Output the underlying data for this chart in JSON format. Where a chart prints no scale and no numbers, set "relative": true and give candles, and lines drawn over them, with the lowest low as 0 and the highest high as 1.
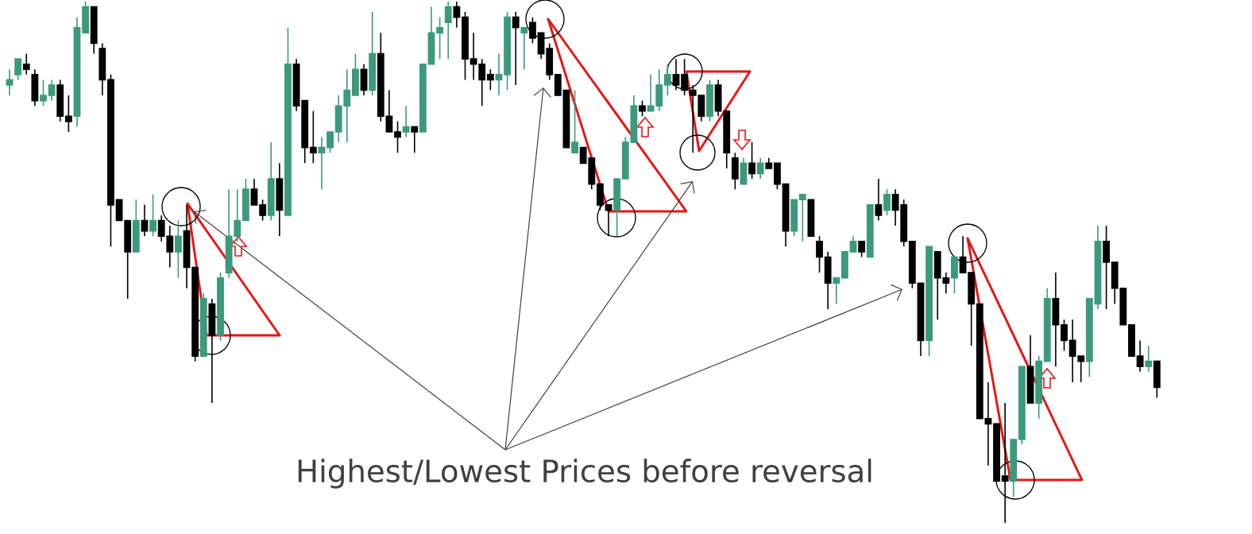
{
  "chart_data": {
    "type": "candlestick",
    "relative": true,
    "annotations": [
      "Highest/Lowest Prices before reversal"
    ],
    "categories": [
      null,
      null,
      null,
      null,
      null,
      null,
      null,
      null,
      null,
      null,
      null,
      null,
      null,
      null,
      null,
      null,
      null,
      null,
      null,
      null,
      null,
      null,
      null,
      null,
      null,
      null,
      null,
      null,
      null,
      null,
      null,
      null,
      null,
      null,
      null,
      null,
      null,
      null,
      null,
      null,
      null,
      null,
      null,
      null,
      null,
      null,
      null,
      null,
      null,
      null,
      null,
      null,
      null,
      null,
      null,
      null,
      null,
      null,
      null,
      null,
      null,
      null,
      null,
      null,
      null,
      null,
      null,
      null,
      null,
      null,
      null,
      null,
      null,
      null,
      null,
      null,
      null,
      null,
      null,
      null,
      null,
      null,
      null,
      null,
      null,
      null,
      null,
      null,
      null,
      null,
      null,
      null,
      null,
      null,
      null,
      null,
      null,
      null,
      null,
      null,
      null,
      null,
      null,
      null,
      null,
      null,
      null,
      null,
      null,
      null,
      null,
      null,
      null,
      null,
      null,
      null,
      null,
      null,
      null,
      null,
      null,
      null,
      null,
      null,
      null,
      null,
      null,
      null,
      null,
      null,
      null,
      null,
      null,
      null,
      null,
      null,
      null
    ],
    "ohlc": [
      [
        0.84,
        0.87,
        0.82,
        0.85
      ],
      [
        0.86,
        0.89,
        0.85,
        0.89
      ],
      [
        0.88,
        0.9,
        0.86,
        0.87
      ],
      [
        0.86,
        0.87,
        0.8,
        0.81
      ],
      [
        0.81,
        0.85,
        0.8,
        0.82
      ],
      [
        0.82,
        0.85,
        0.81,
        0.84
      ],
      [
        0.84,
        0.85,
        0.77,
        0.78
      ],
      [
        0.78,
        0.82,
        0.75,
        0.77
      ],
      [
        0.78,
        0.97,
        0.76,
        0.95
      ],
      [
        0.94,
        1.0,
        0.94,
        0.99
      ],
      [
        0.99,
        0.99,
        0.9,
        0.92
      ],
      [
        0.91,
        0.92,
        0.82,
        0.85
      ],
      [
        0.85,
        0.86,
        0.53,
        0.61
      ],
      [
        0.62,
        0.62,
        0.58,
        0.58
      ],
      [
        0.58,
        0.58,
        0.43,
        0.52
      ],
      [
        0.52,
        0.62,
        0.52,
        0.58
      ],
      [
        0.58,
        0.61,
        0.55,
        0.56
      ],
      [
        0.56,
        0.63,
        0.55,
        0.58
      ],
      [
        0.58,
        0.59,
        0.54,
        0.55
      ],
      [
        0.55,
        0.57,
        0.49,
        0.52
      ],
      [
        0.52,
        0.58,
        0.47,
        0.55
      ],
      [
        0.56,
        0.61,
        0.45,
        0.49
      ],
      [
        0.49,
        0.49,
        0.31,
        0.32
      ],
      [
        0.32,
        0.44,
        0.32,
        0.43
      ],
      [
        0.42,
        0.43,
        0.23,
        0.36
      ],
      [
        0.36,
        0.48,
        0.35,
        0.47
      ],
      [
        0.48,
        0.64,
        0.47,
        0.55
      ],
      [
        0.55,
        0.64,
        0.54,
        0.58
      ],
      [
        0.58,
        0.66,
        0.58,
        0.64
      ],
      [
        0.64,
        0.66,
        0.61,
        0.61
      ],
      [
        0.61,
        0.62,
        0.58,
        0.59
      ],
      [
        0.59,
        0.73,
        0.58,
        0.66
      ],
      [
        0.66,
        0.69,
        0.55,
        0.6
      ],
      [
        0.59,
        0.95,
        0.59,
        0.88
      ],
      [
        0.88,
        0.89,
        0.79,
        0.8
      ],
      [
        0.81,
        0.81,
        0.69,
        0.72
      ],
      [
        0.72,
        0.79,
        0.69,
        0.71
      ],
      [
        0.71,
        0.74,
        0.64,
        0.72
      ],
      [
        0.72,
        0.75,
        0.71,
        0.75
      ],
      [
        0.75,
        0.82,
        0.73,
        0.8
      ],
      [
        0.8,
        0.87,
        0.73,
        0.83
      ],
      [
        0.82,
        0.9,
        0.82,
        0.87
      ],
      [
        0.87,
        0.88,
        0.82,
        0.83
      ],
      [
        0.83,
        0.98,
        0.82,
        0.9
      ],
      [
        0.9,
        0.94,
        0.77,
        0.78
      ],
      [
        0.78,
        0.83,
        0.75,
        0.75
      ],
      [
        0.75,
        0.77,
        0.71,
        0.74
      ],
      [
        0.75,
        0.8,
        0.74,
        0.76
      ],
      [
        0.76,
        0.76,
        0.71,
        0.75
      ],
      [
        0.75,
        0.88,
        0.75,
        0.88
      ],
      [
        0.88,
        0.99,
        0.88,
        0.94
      ],
      [
        0.94,
        0.97,
        0.89,
        0.95
      ],
      [
        0.96,
        1.0,
        0.89,
        0.99
      ],
      [
        0.99,
        1.0,
        0.95,
        0.97
      ],
      [
        0.97,
        0.98,
        0.85,
        0.89
      ],
      [
        0.89,
        0.94,
        0.85,
        0.88
      ],
      [
        0.88,
        0.89,
        0.8,
        0.85
      ],
      [
        0.86,
        0.87,
        0.83,
        0.85
      ],
      [
        0.85,
        0.9,
        0.82,
        0.86
      ],
      [
        0.86,
        0.98,
        0.83,
        0.97
      ],
      [
        0.97,
        0.98,
        0.84,
        0.95
      ],
      [
        0.94,
        0.95,
        0.87,
        0.95
      ],
      [
        0.96,
        0.97,
        0.92,
        0.93
      ],
      [
        0.94,
        0.94,
        0.89,
        0.9
      ],
      [
        0.91,
        0.92,
        0.85,
        0.86
      ],
      [
        0.86,
        0.86,
        0.82,
        0.82
      ],
      [
        0.83,
        0.83,
        0.72,
        0.72
      ],
      [
        0.71,
        0.83,
        0.71,
        0.73
      ],
      [
        0.72,
        0.72,
        0.69,
        0.69
      ],
      [
        0.7,
        0.7,
        0.64,
        0.65
      ],
      [
        0.65,
        0.65,
        0.6,
        0.61
      ],
      [
        0.61,
        0.61,
        0.55,
        0.6
      ],
      [
        0.6,
        0.66,
        0.55,
        0.66
      ],
      [
        0.66,
        0.74,
        0.66,
        0.73
      ],
      [
        0.73,
        0.82,
        0.73,
        0.8
      ],
      [
        0.8,
        0.81,
        0.78,
        0.79
      ],
      [
        0.79,
        0.86,
        0.79,
        0.8
      ],
      [
        0.8,
        0.87,
        0.79,
        0.84
      ],
      [
        0.84,
        0.88,
        0.82,
        0.86
      ],
      [
        0.86,
        0.89,
        0.83,
        0.84
      ],
      [
        0.86,
        0.89,
        0.82,
        0.83
      ],
      [
        0.83,
        0.84,
        0.71,
        0.82
      ],
      [
        0.82,
        0.82,
        0.77,
        0.78
      ],
      [
        0.78,
        0.85,
        0.77,
        0.84
      ],
      [
        0.84,
        0.85,
        0.78,
        0.79
      ],
      [
        0.79,
        0.79,
        0.68,
        0.71
      ],
      [
        0.7,
        0.71,
        0.64,
        0.66
      ],
      [
        0.65,
        0.7,
        0.65,
        0.69
      ],
      [
        0.69,
        0.73,
        0.66,
        0.67
      ],
      [
        0.67,
        0.7,
        0.66,
        0.69
      ],
      [
        0.69,
        0.7,
        0.68,
        0.68
      ],
      [
        0.69,
        0.69,
        0.64,
        0.65
      ],
      [
        0.65,
        0.65,
        0.53,
        0.56
      ],
      [
        0.56,
        0.62,
        0.55,
        0.62
      ],
      [
        0.62,
        0.63,
        0.54,
        0.63
      ],
      [
        0.62,
        0.62,
        0.55,
        0.55
      ],
      [
        0.54,
        0.55,
        0.48,
        0.51
      ],
      [
        0.51,
        0.52,
        0.41,
        0.46
      ],
      [
        0.46,
        0.47,
        0.42,
        0.47
      ],
      [
        0.47,
        0.52,
        0.47,
        0.52
      ],
      [
        0.52,
        0.55,
        0.52,
        0.54
      ],
      [
        0.54,
        0.54,
        0.51,
        0.52
      ],
      [
        0.51,
        0.61,
        0.51,
        0.61
      ],
      [
        0.61,
        0.66,
        0.58,
        0.59
      ],
      [
        0.6,
        0.64,
        0.59,
        0.63
      ],
      [
        0.63,
        0.64,
        0.57,
        0.6
      ],
      [
        0.61,
        0.62,
        0.53,
        0.54
      ],
      [
        0.54,
        0.54,
        0.45,
        0.46
      ],
      [
        0.46,
        0.46,
        0.32,
        0.35
      ],
      [
        0.35,
        0.53,
        0.32,
        0.53
      ],
      [
        0.52,
        0.52,
        0.39,
        0.47
      ],
      [
        0.47,
        0.48,
        0.44,
        0.46
      ],
      [
        0.47,
        0.51,
        0.44,
        0.51
      ],
      [
        0.51,
        0.55,
        0.48,
        0.48
      ],
      [
        0.48,
        0.48,
        0.34,
        0.42
      ],
      [
        0.42,
        0.42,
        0.2,
        0.2
      ],
      [
        0.2,
        0.27,
        0.11,
        0.19
      ],
      [
        0.19,
        0.19,
        0.08,
        0.08
      ],
      [
        0.09,
        0.23,
        0,
        0.08
      ],
      [
        0.08,
        0.16,
        0.05,
        0.16
      ],
      [
        0.16,
        0.3,
        0.15,
        0.3
      ],
      [
        0.3,
        0.36,
        0.23,
        0.23
      ],
      [
        0.23,
        0.32,
        0.2,
        0.31
      ],
      [
        0.31,
        0.45,
        0.31,
        0.43
      ],
      [
        0.43,
        0.48,
        0.3,
        0.38
      ],
      [
        0.38,
        0.39,
        0.33,
        0.35
      ],
      [
        0.35,
        0.39,
        0.27,
        0.32
      ],
      [
        0.32,
        0.32,
        0.27,
        0.31
      ],
      [
        0.31,
        0.43,
        0.28,
        0.43
      ],
      [
        0.42,
        0.57,
        0.41,
        0.54
      ],
      [
        0.54,
        0.57,
        0.41,
        0.5
      ],
      [
        0.5,
        0.5,
        0.42,
        0.45
      ],
      [
        0.45,
        0.45,
        0.38,
        0.38
      ],
      [
        0.38,
        0.38,
        0.32,
        0.32
      ],
      [
        0.32,
        0.35,
        0.29,
        0.3
      ],
      [
        0.3,
        0.34,
        0.29,
        0.31
      ],
      [
        0.31,
        0.31,
        0.24,
        0.26
      ]
    ],
    "colors": [
      "#3b9a7d",
      "#3b9a7d",
      "#000000",
      "#000000",
      "#3b9a7d",
      "#3b9a7d",
      "#000000",
      "#000000",
      "#3b9a7d",
      "#3b9a7d",
      "#000000",
      "#000000",
      "#000000",
      "#000000",
      "#000000",
      "#3b9a7d",
      "#000000",
      "#3b9a7d",
      "#000000",
      "#000000",
      "#3b9a7d",
      "#000000",
      "#000000",
      "#3b9a7d",
      "#000000",
      "#3b9a7d",
      "#3b9a7d",
      "#3b9a7d",
      "#3b9a7d",
      "#000000",
      "#000000",
      "#3b9a7d",
      "#000000",
      "#3b9a7d",
      "#000000",
      "#000000",
      "#000000",
      "#3b9a7d",
      "#3b9a7d",
      "#3b9a7d",
      "#3b9a7d",
      "#3b9a7d",
      "#000000",
      "#3b9a7d",
      "#000000",
      "#000000",
      "#000000",
      "#3b9a7d",
      "#000000",
      "#3b9a7d",
      "#3b9a7d",
      "#3b9a7d",
      "#3b9a7d",
      "#000000",
      "#000000",
      "#000000",
      "#000000",
      "#000000",
      "#3b9a7d",
      "#3b9a7d",
      "#000000",
      "#3b9a7d",
      "#000000",
      "#000000",
      "#000000",
      "#000000",
      "#000000",
      "#3b9a7d",
      "#000000",
      "#000000",
      "#000000",
      "#000000",
      "#3b9a7d",
      "#3b9a7d",
      "#3b9a7d",
      "#000000",
      "#3b9a7d",
      "#3b9a7d",
      "#3b9a7d",
      "#000000",
      "#000000",
      "#000000",
      "#000000",
      "#3b9a7d",
      "#000000",
      "#000000",
      "#000000",
      "#3b9a7d",
      "#000000",
      "#3b9a7d",
      "#000000",
      "#000000",
      "#000000",
      "#3b9a7d",
      "#3b9a7d",
      "#000000",
      "#000000",
      "#000000",
      "#3b9a7d",
      "#3b9a7d",
      "#3b9a7d",
      "#000000",
      "#3b9a7d",
      "#000000",
      "#3b9a7d",
      "#000000",
      "#000000",
      "#000000",
      "#000000",
      "#3b9a7d",
      "#000000",
      "#000000",
      "#3b9a7d",
      "#000000",
      "#000000",
      "#000000",
      "#000000",
      "#000000",
      "#000000",
      "#3b9a7d",
      "#3b9a7d",
      "#000000",
      "#3b9a7d",
      "#3b9a7d",
      "#000000",
      "#000000",
      "#000000",
      "#000000",
      "#3b9a7d",
      "#3b9a7d",
      "#000000",
      "#000000",
      "#000000",
      "#000000",
      "#000000",
      "#3b9a7d",
      "#000000"
    ]
  }
}
